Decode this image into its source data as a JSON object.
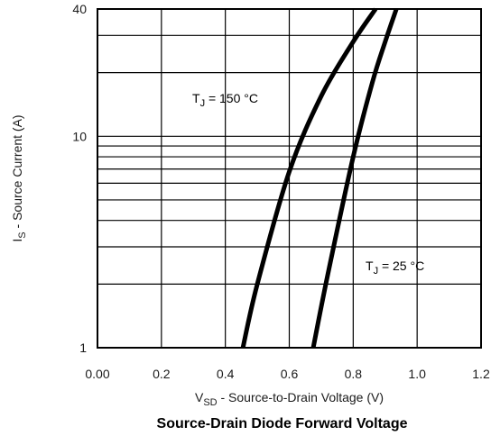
{
  "chart_data": {
    "type": "line",
    "title": "Source-Drain Diode Forward Voltage",
    "xlabel": {
      "main": "V",
      "sub": "SD",
      "rest": " - Source-to-Drain Voltage (V)"
    },
    "ylabel": {
      "main": "I",
      "sub": "S",
      "rest": " - Source Current (A)"
    },
    "xlim": [
      0.0,
      1.2
    ],
    "ylim": [
      1,
      40
    ],
    "yscale": "log",
    "grid": true,
    "x_ticks": [
      "0.00",
      "0.2",
      "0.4",
      "0.6",
      "0.8",
      "1.0",
      "1.2"
    ],
    "y_ticks": [
      "1",
      "10",
      "40"
    ],
    "series": [
      {
        "annotation": {
          "main": "T",
          "sub": "J",
          "rest": " = 150 °C"
        },
        "points": [
          [
            0.455,
            1.0
          ],
          [
            0.5,
            2.0
          ],
          [
            0.6,
            6.8
          ],
          [
            0.7,
            15.5
          ],
          [
            0.8,
            28.0
          ],
          [
            0.87,
            40.0
          ]
        ]
      },
      {
        "annotation": {
          "main": "T",
          "sub": "J",
          "rest": " = 25 °C"
        },
        "points": [
          [
            0.675,
            1.0
          ],
          [
            0.72,
            2.2
          ],
          [
            0.8,
            8.0
          ],
          [
            0.86,
            18.0
          ],
          [
            0.9,
            28.0
          ],
          [
            0.935,
            40.0
          ]
        ]
      }
    ]
  }
}
